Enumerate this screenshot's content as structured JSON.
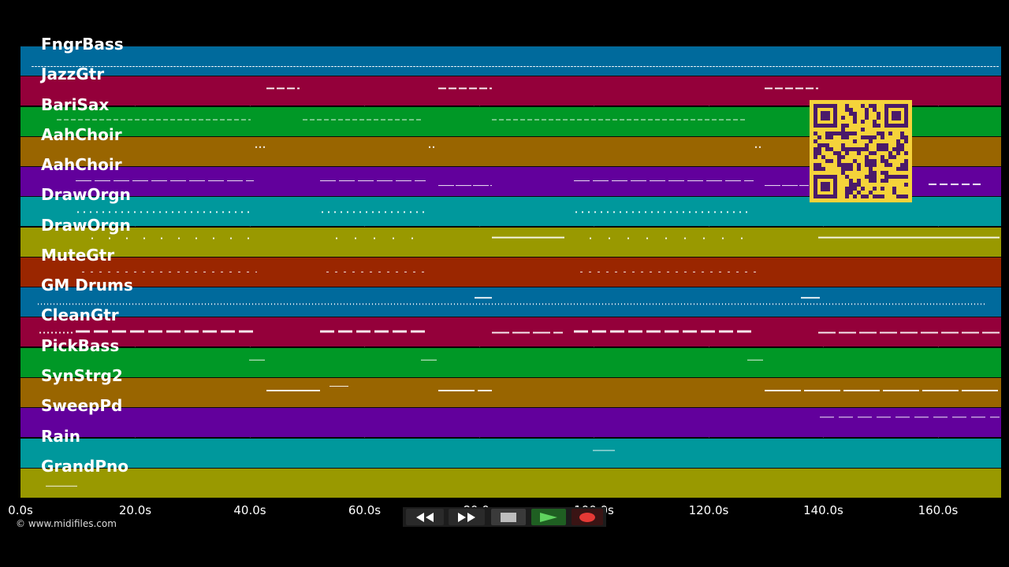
{
  "tracks": [
    {
      "name": "FngrBass",
      "color": "#006a9c"
    },
    {
      "name": "JazzGtr",
      "color": "#94003a"
    },
    {
      "name": "BariSax",
      "color": "#009826"
    },
    {
      "name": "AahChoir",
      "color": "#996500"
    },
    {
      "name": "AahChoir",
      "color": "#62009c"
    },
    {
      "name": "DrawOrgn",
      "color": "#00989c"
    },
    {
      "name": "DrawOrgn",
      "color": "#999900"
    },
    {
      "name": "MuteGtr",
      "color": "#9a2600"
    },
    {
      "name": "GM Drums",
      "color": "#006a9c"
    },
    {
      "name": "CleanGtr",
      "color": "#94003a"
    },
    {
      "name": "PickBass",
      "color": "#009826"
    },
    {
      "name": "SynStrg2",
      "color": "#996500"
    },
    {
      "name": "SweepPd",
      "color": "#62009c"
    },
    {
      "name": "Rain",
      "color": "#00989c"
    },
    {
      "name": "GrandPno",
      "color": "#999900"
    }
  ],
  "timeline": {
    "ticks": [
      "0.0s",
      "20.0s",
      "40.0s",
      "60.0s",
      "80.0s",
      "100.0s",
      "120.0s",
      "140.0s",
      "160.0s"
    ],
    "tick_seconds": [
      0,
      20,
      40,
      60,
      80,
      100,
      120,
      140,
      160
    ],
    "max_seconds": 171
  },
  "copyright": "© www.midifiles.com",
  "transport": {
    "rewind_icon": "rewind-icon",
    "fast_forward_icon": "fast-forward-icon",
    "stop_icon": "stop-icon",
    "play_icon": "play-icon",
    "record_icon": "record-icon",
    "play_color": "#4caf50",
    "record_color": "#e53935"
  },
  "qr_code_icon": "qr-code-icon"
}
